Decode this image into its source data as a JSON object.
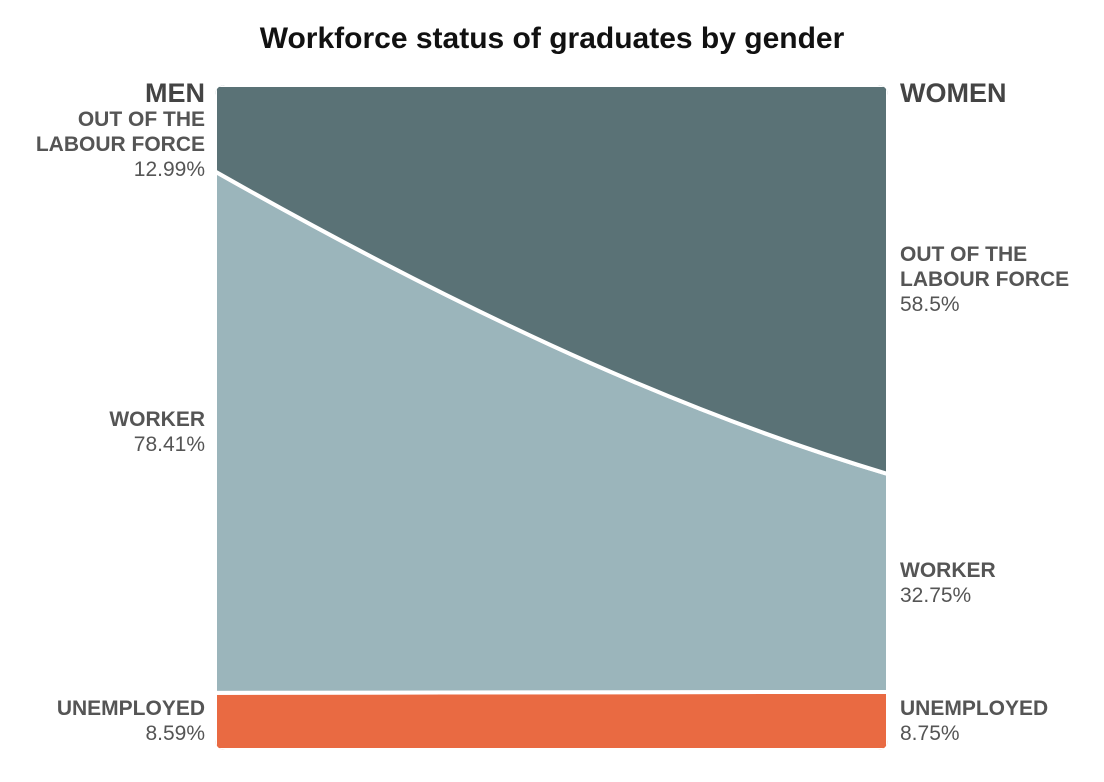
{
  "chart_data": {
    "type": "stacked_slope_area",
    "title": "Workforce status of graduates by gender",
    "categories": [
      "MEN",
      "WOMEN"
    ],
    "series": [
      {
        "name": "UNEMPLOYED",
        "color": "#e96a42",
        "values": [
          8.59,
          8.75
        ],
        "value_labels": [
          "8.59%",
          "8.75%"
        ]
      },
      {
        "name": "WORKER",
        "color": "#9bb5bb",
        "values": [
          78.41,
          32.75
        ],
        "value_labels": [
          "78.41%",
          "32.75%"
        ]
      },
      {
        "name": "OUT OF THE LABOUR FORCE",
        "color": "#5a7276",
        "values": [
          12.99,
          58.5
        ],
        "value_labels": [
          "12.99%",
          "58.5%"
        ]
      }
    ]
  }
}
